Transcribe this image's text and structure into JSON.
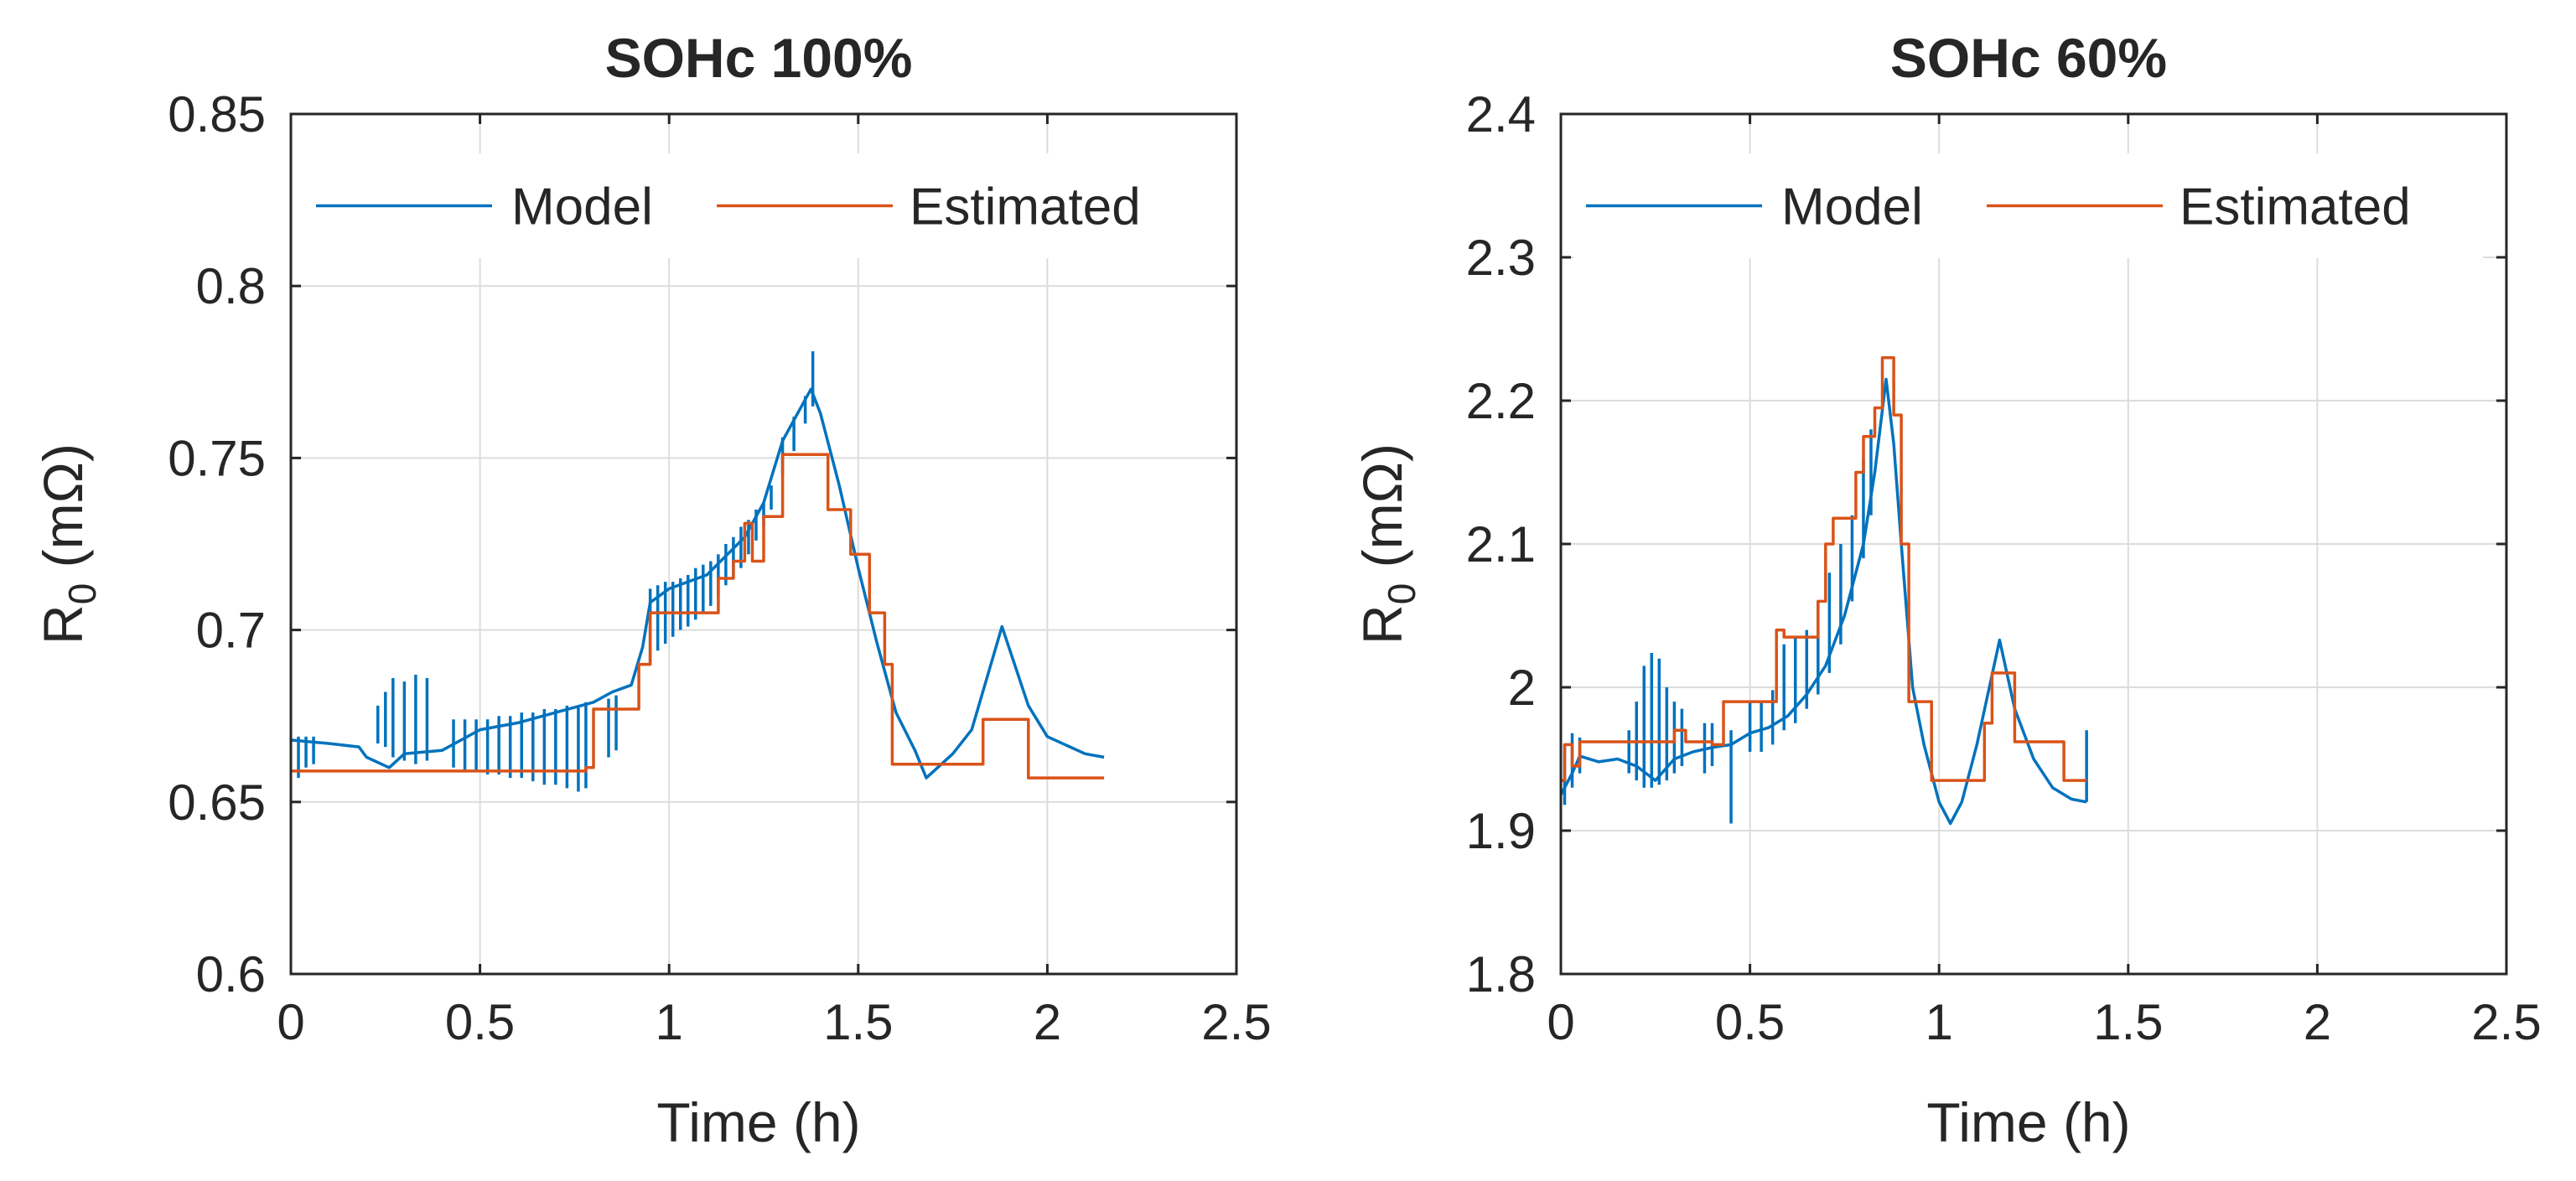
{
  "chart_data": [
    {
      "type": "line",
      "title": "SOHc 100%",
      "xlabel": "Time (h)",
      "ylabel_main": "R",
      "ylabel_sub": "0",
      "ylabel_rest": " (mΩ)",
      "xlim": [
        0,
        2.5
      ],
      "ylim": [
        0.6,
        0.85
      ],
      "xticks": [
        0,
        0.5,
        1,
        1.5,
        2,
        2.5
      ],
      "xtick_labels": [
        "0",
        "0.5",
        "1",
        "1.5",
        "2",
        "2.5"
      ],
      "yticks": [
        0.6,
        0.65,
        0.7,
        0.75,
        0.8,
        0.85
      ],
      "ytick_labels": [
        "0.6",
        "0.65",
        "0.7",
        "0.75",
        "0.8",
        "0.85"
      ],
      "grid": true,
      "legend_position": "top",
      "series": [
        {
          "name": "Model",
          "color": "#0072BD",
          "points": [
            [
              0,
              0.668
            ],
            [
              0.1,
              0.667
            ],
            [
              0.18,
              0.666
            ],
            [
              0.2,
              0.663
            ],
            [
              0.26,
              0.66
            ],
            [
              0.3,
              0.664
            ],
            [
              0.4,
              0.665
            ],
            [
              0.5,
              0.671
            ],
            [
              0.6,
              0.673
            ],
            [
              0.7,
              0.676
            ],
            [
              0.8,
              0.679
            ],
            [
              0.85,
              0.682
            ],
            [
              0.9,
              0.684
            ],
            [
              0.93,
              0.695
            ],
            [
              0.95,
              0.708
            ],
            [
              1.0,
              0.712
            ],
            [
              1.1,
              0.716
            ],
            [
              1.2,
              0.727
            ],
            [
              1.25,
              0.737
            ],
            [
              1.3,
              0.755
            ],
            [
              1.35,
              0.765
            ],
            [
              1.375,
              0.77
            ],
            [
              1.4,
              0.763
            ],
            [
              1.45,
              0.742
            ],
            [
              1.5,
              0.718
            ],
            [
              1.55,
              0.696
            ],
            [
              1.6,
              0.676
            ],
            [
              1.65,
              0.665
            ],
            [
              1.68,
              0.657
            ],
            [
              1.7,
              0.659
            ],
            [
              1.75,
              0.664
            ],
            [
              1.8,
              0.671
            ],
            [
              1.88,
              0.701
            ],
            [
              1.95,
              0.678
            ],
            [
              2.0,
              0.669
            ],
            [
              2.1,
              0.664
            ],
            [
              2.15,
              0.663
            ]
          ],
          "spikes": [
            [
              0.02,
              0.657,
              0.669
            ],
            [
              0.04,
              0.66,
              0.669
            ],
            [
              0.06,
              0.661,
              0.669
            ],
            [
              0.23,
              0.667,
              0.678
            ],
            [
              0.25,
              0.666,
              0.682
            ],
            [
              0.27,
              0.663,
              0.686
            ],
            [
              0.3,
              0.662,
              0.685
            ],
            [
              0.33,
              0.661,
              0.687
            ],
            [
              0.36,
              0.662,
              0.686
            ],
            [
              0.43,
              0.66,
              0.674
            ],
            [
              0.46,
              0.659,
              0.674
            ],
            [
              0.49,
              0.659,
              0.674
            ],
            [
              0.52,
              0.658,
              0.674
            ],
            [
              0.55,
              0.658,
              0.675
            ],
            [
              0.58,
              0.657,
              0.675
            ],
            [
              0.61,
              0.657,
              0.676
            ],
            [
              0.64,
              0.656,
              0.676
            ],
            [
              0.67,
              0.655,
              0.677
            ],
            [
              0.7,
              0.655,
              0.677
            ],
            [
              0.73,
              0.654,
              0.678
            ],
            [
              0.76,
              0.653,
              0.678
            ],
            [
              0.78,
              0.654,
              0.679
            ],
            [
              0.84,
              0.663,
              0.68
            ],
            [
              0.86,
              0.665,
              0.681
            ],
            [
              0.95,
              0.69,
              0.712
            ],
            [
              0.97,
              0.694,
              0.713
            ],
            [
              0.99,
              0.696,
              0.714
            ],
            [
              1.01,
              0.698,
              0.714
            ],
            [
              1.03,
              0.7,
              0.715
            ],
            [
              1.05,
              0.701,
              0.716
            ],
            [
              1.07,
              0.703,
              0.718
            ],
            [
              1.09,
              0.705,
              0.719
            ],
            [
              1.11,
              0.707,
              0.72
            ],
            [
              1.13,
              0.71,
              0.722
            ],
            [
              1.15,
              0.713,
              0.725
            ],
            [
              1.17,
              0.715,
              0.727
            ],
            [
              1.19,
              0.718,
              0.73
            ],
            [
              1.21,
              0.722,
              0.732
            ],
            [
              1.23,
              0.726,
              0.735
            ],
            [
              1.25,
              0.73,
              0.737
            ],
            [
              1.27,
              0.735,
              0.742
            ],
            [
              1.3,
              0.745,
              0.756
            ],
            [
              1.33,
              0.752,
              0.762
            ],
            [
              1.36,
              0.76,
              0.768
            ],
            [
              1.38,
              0.765,
              0.781
            ]
          ]
        },
        {
          "name": "Estimated",
          "color": "#D95319",
          "points": [
            [
              0,
              0.659
            ],
            [
              0.78,
              0.659
            ],
            [
              0.78,
              0.66
            ],
            [
              0.8,
              0.66
            ],
            [
              0.8,
              0.677
            ],
            [
              0.92,
              0.677
            ],
            [
              0.92,
              0.69
            ],
            [
              0.95,
              0.69
            ],
            [
              0.95,
              0.705
            ],
            [
              1.13,
              0.705
            ],
            [
              1.13,
              0.715
            ],
            [
              1.17,
              0.715
            ],
            [
              1.17,
              0.72
            ],
            [
              1.2,
              0.72
            ],
            [
              1.2,
              0.731
            ],
            [
              1.22,
              0.731
            ],
            [
              1.22,
              0.72
            ],
            [
              1.25,
              0.72
            ],
            [
              1.25,
              0.733
            ],
            [
              1.3,
              0.733
            ],
            [
              1.3,
              0.751
            ],
            [
              1.42,
              0.751
            ],
            [
              1.42,
              0.735
            ],
            [
              1.48,
              0.735
            ],
            [
              1.48,
              0.722
            ],
            [
              1.53,
              0.722
            ],
            [
              1.53,
              0.705
            ],
            [
              1.57,
              0.705
            ],
            [
              1.57,
              0.69
            ],
            [
              1.59,
              0.69
            ],
            [
              1.59,
              0.661
            ],
            [
              1.83,
              0.661
            ],
            [
              1.83,
              0.674
            ],
            [
              1.95,
              0.674
            ],
            [
              1.95,
              0.657
            ],
            [
              2.15,
              0.657
            ]
          ]
        }
      ]
    },
    {
      "type": "line",
      "title": "SOHc 60%",
      "xlabel": "Time (h)",
      "ylabel_main": "R",
      "ylabel_sub": "0",
      "ylabel_rest": " (mΩ)",
      "xlim": [
        0,
        2.5
      ],
      "ylim": [
        1.8,
        2.4
      ],
      "xticks": [
        0,
        0.5,
        1,
        1.5,
        2,
        2.5
      ],
      "xtick_labels": [
        "0",
        "0.5",
        "1",
        "1.5",
        "2",
        "2.5"
      ],
      "yticks": [
        1.8,
        1.9,
        2.0,
        2.1,
        2.2,
        2.3,
        2.4
      ],
      "ytick_labels": [
        "1.8",
        "1.9",
        "2",
        "2.1",
        "2.2",
        "2.3",
        "2.4"
      ],
      "grid": true,
      "legend_position": "top",
      "series": [
        {
          "name": "Model",
          "color": "#0072BD",
          "points": [
            [
              0,
              1.925
            ],
            [
              0.03,
              1.94
            ],
            [
              0.05,
              1.952
            ],
            [
              0.1,
              1.948
            ],
            [
              0.15,
              1.95
            ],
            [
              0.2,
              1.945
            ],
            [
              0.25,
              1.935
            ],
            [
              0.3,
              1.95
            ],
            [
              0.35,
              1.955
            ],
            [
              0.4,
              1.958
            ],
            [
              0.45,
              1.96
            ],
            [
              0.5,
              1.968
            ],
            [
              0.55,
              1.972
            ],
            [
              0.6,
              1.98
            ],
            [
              0.65,
              1.995
            ],
            [
              0.7,
              2.015
            ],
            [
              0.75,
              2.05
            ],
            [
              0.8,
              2.1
            ],
            [
              0.83,
              2.15
            ],
            [
              0.86,
              2.215
            ],
            [
              0.88,
              2.17
            ],
            [
              0.9,
              2.1
            ],
            [
              0.93,
              2.0
            ],
            [
              0.96,
              1.96
            ],
            [
              1.0,
              1.92
            ],
            [
              1.03,
              1.905
            ],
            [
              1.06,
              1.92
            ],
            [
              1.1,
              1.96
            ],
            [
              1.16,
              2.033
            ],
            [
              1.2,
              1.985
            ],
            [
              1.25,
              1.95
            ],
            [
              1.3,
              1.93
            ],
            [
              1.35,
              1.922
            ],
            [
              1.39,
              1.92
            ]
          ],
          "spikes": [
            [
              0.01,
              1.918,
              1.96
            ],
            [
              0.03,
              1.93,
              1.968
            ],
            [
              0.05,
              1.94,
              1.965
            ],
            [
              0.18,
              1.94,
              1.97
            ],
            [
              0.2,
              1.935,
              1.99
            ],
            [
              0.22,
              1.93,
              2.015
            ],
            [
              0.24,
              1.93,
              2.024
            ],
            [
              0.26,
              1.932,
              2.02
            ],
            [
              0.28,
              1.935,
              2.0
            ],
            [
              0.3,
              1.94,
              1.99
            ],
            [
              0.32,
              1.945,
              1.985
            ],
            [
              0.38,
              1.94,
              1.975
            ],
            [
              0.4,
              1.945,
              1.975
            ],
            [
              0.45,
              1.905,
              1.97
            ],
            [
              0.5,
              1.955,
              1.99
            ],
            [
              0.53,
              1.955,
              1.99
            ],
            [
              0.56,
              1.96,
              1.998
            ],
            [
              0.59,
              1.97,
              2.03
            ],
            [
              0.62,
              1.975,
              2.035
            ],
            [
              0.65,
              1.985,
              2.04
            ],
            [
              0.68,
              1.995,
              2.06
            ],
            [
              0.71,
              2.01,
              2.08
            ],
            [
              0.74,
              2.03,
              2.1
            ],
            [
              0.77,
              2.06,
              2.12
            ],
            [
              0.8,
              2.09,
              2.16
            ],
            [
              0.82,
              2.12,
              2.18
            ],
            [
              1.39,
              1.92,
              1.97
            ]
          ]
        },
        {
          "name": "Estimated",
          "color": "#D95319",
          "points": [
            [
              0,
              1.935
            ],
            [
              0.01,
              1.935
            ],
            [
              0.01,
              1.96
            ],
            [
              0.03,
              1.96
            ],
            [
              0.03,
              1.945
            ],
            [
              0.05,
              1.945
            ],
            [
              0.05,
              1.962
            ],
            [
              0.3,
              1.962
            ],
            [
              0.3,
              1.97
            ],
            [
              0.33,
              1.97
            ],
            [
              0.33,
              1.962
            ],
            [
              0.4,
              1.962
            ],
            [
              0.4,
              1.96
            ],
            [
              0.43,
              1.96
            ],
            [
              0.43,
              1.99
            ],
            [
              0.57,
              1.99
            ],
            [
              0.57,
              2.04
            ],
            [
              0.59,
              2.04
            ],
            [
              0.59,
              2.035
            ],
            [
              0.68,
              2.035
            ],
            [
              0.68,
              2.06
            ],
            [
              0.7,
              2.06
            ],
            [
              0.7,
              2.1
            ],
            [
              0.72,
              2.1
            ],
            [
              0.72,
              2.118
            ],
            [
              0.78,
              2.118
            ],
            [
              0.78,
              2.15
            ],
            [
              0.8,
              2.15
            ],
            [
              0.8,
              2.175
            ],
            [
              0.83,
              2.175
            ],
            [
              0.83,
              2.195
            ],
            [
              0.85,
              2.195
            ],
            [
              0.85,
              2.23
            ],
            [
              0.88,
              2.23
            ],
            [
              0.88,
              2.19
            ],
            [
              0.9,
              2.19
            ],
            [
              0.9,
              2.1
            ],
            [
              0.92,
              2.1
            ],
            [
              0.92,
              1.99
            ],
            [
              0.98,
              1.99
            ],
            [
              0.98,
              1.935
            ],
            [
              1.12,
              1.935
            ],
            [
              1.12,
              1.975
            ],
            [
              1.14,
              1.975
            ],
            [
              1.14,
              2.01
            ],
            [
              1.2,
              2.01
            ],
            [
              1.2,
              1.962
            ],
            [
              1.33,
              1.962
            ],
            [
              1.33,
              1.935
            ],
            [
              1.39,
              1.935
            ]
          ]
        }
      ]
    }
  ]
}
